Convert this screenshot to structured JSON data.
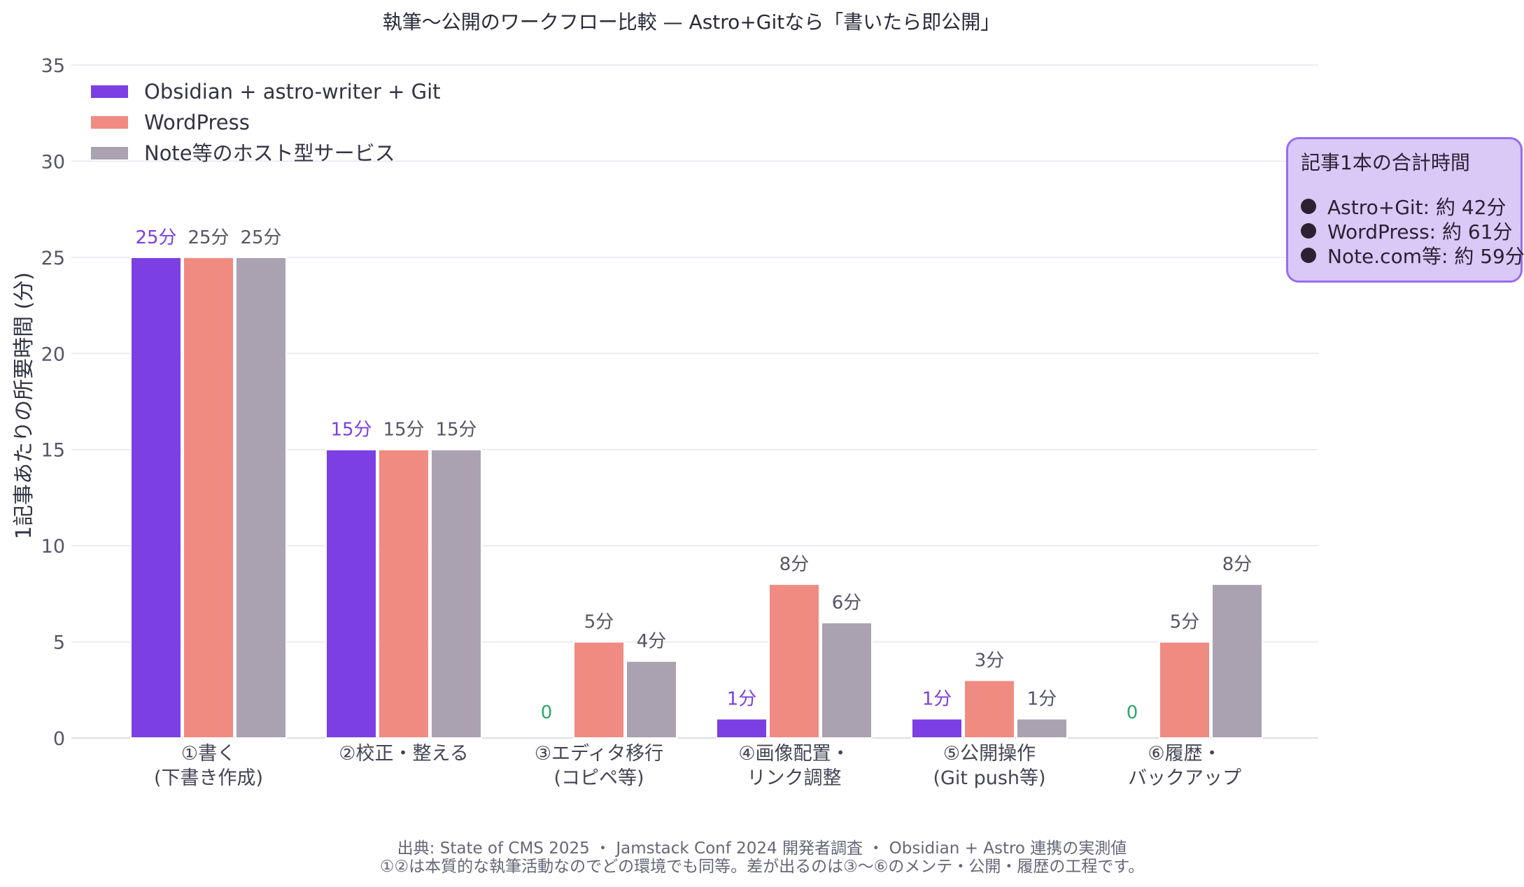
{
  "chart_data": {
    "type": "bar",
    "title": "執筆〜公開のワークフロー比較 — Astro+Gitなら「書いたら即公開」",
    "ylabel": "1記事あたりの所要時間 (分)",
    "xlabel": "",
    "ylim": [
      0,
      35
    ],
    "yticks": [
      "0",
      "5",
      "10",
      "15",
      "20",
      "25",
      "30",
      "35"
    ],
    "grid": true,
    "legend_position": "top-left",
    "categories": [
      [
        "①書く",
        "(下書き作成)"
      ],
      [
        "②校正・整える"
      ],
      [
        "③エディタ移行",
        "(コピペ等)"
      ],
      [
        "④画像配置・",
        "リンク調整"
      ],
      [
        "⑤公開操作",
        "(Git push等)"
      ],
      [
        "⑥履歴・",
        "バックアップ"
      ]
    ],
    "series": [
      {
        "name": "Obsidian + astro-writer + Git",
        "color": "#7b3fe4",
        "values": [
          25,
          15,
          0,
          1,
          1,
          0
        ],
        "labels": [
          "25分",
          "15分",
          "0",
          "1分",
          "1分",
          "0"
        ]
      },
      {
        "name": "WordPress",
        "color": "#f08b82",
        "values": [
          25,
          15,
          5,
          8,
          3,
          5
        ],
        "labels": [
          "25分",
          "15分",
          "5分",
          "8分",
          "3分",
          "5分"
        ]
      },
      {
        "name": "Note等のホスト型サービス",
        "color": "#aaa1b1",
        "values": [
          25,
          15,
          4,
          6,
          1,
          8
        ],
        "labels": [
          "25分",
          "15分",
          "4分",
          "6分",
          "1分",
          "8分"
        ]
      }
    ],
    "label_colors": {
      "series0": "#7b3fe4",
      "zero": "#2ea86b",
      "other": "#555566"
    }
  },
  "summary_box": {
    "title": "記事1本の合計時間",
    "lines": [
      "Astro+Git: 約 42分",
      "WordPress: 約 61分",
      "Note.com等: 約 59分"
    ]
  },
  "footer": {
    "line1": "出典: State of CMS 2025 ・ Jamstack Conf 2024 開発者調査 ・ Obsidian + Astro 連携の実測値",
    "line2": "①②は本質的な執筆活動なのでどの環境でも同等。差が出るのは③〜⑥のメンテ・公開・履歴の工程です。"
  }
}
